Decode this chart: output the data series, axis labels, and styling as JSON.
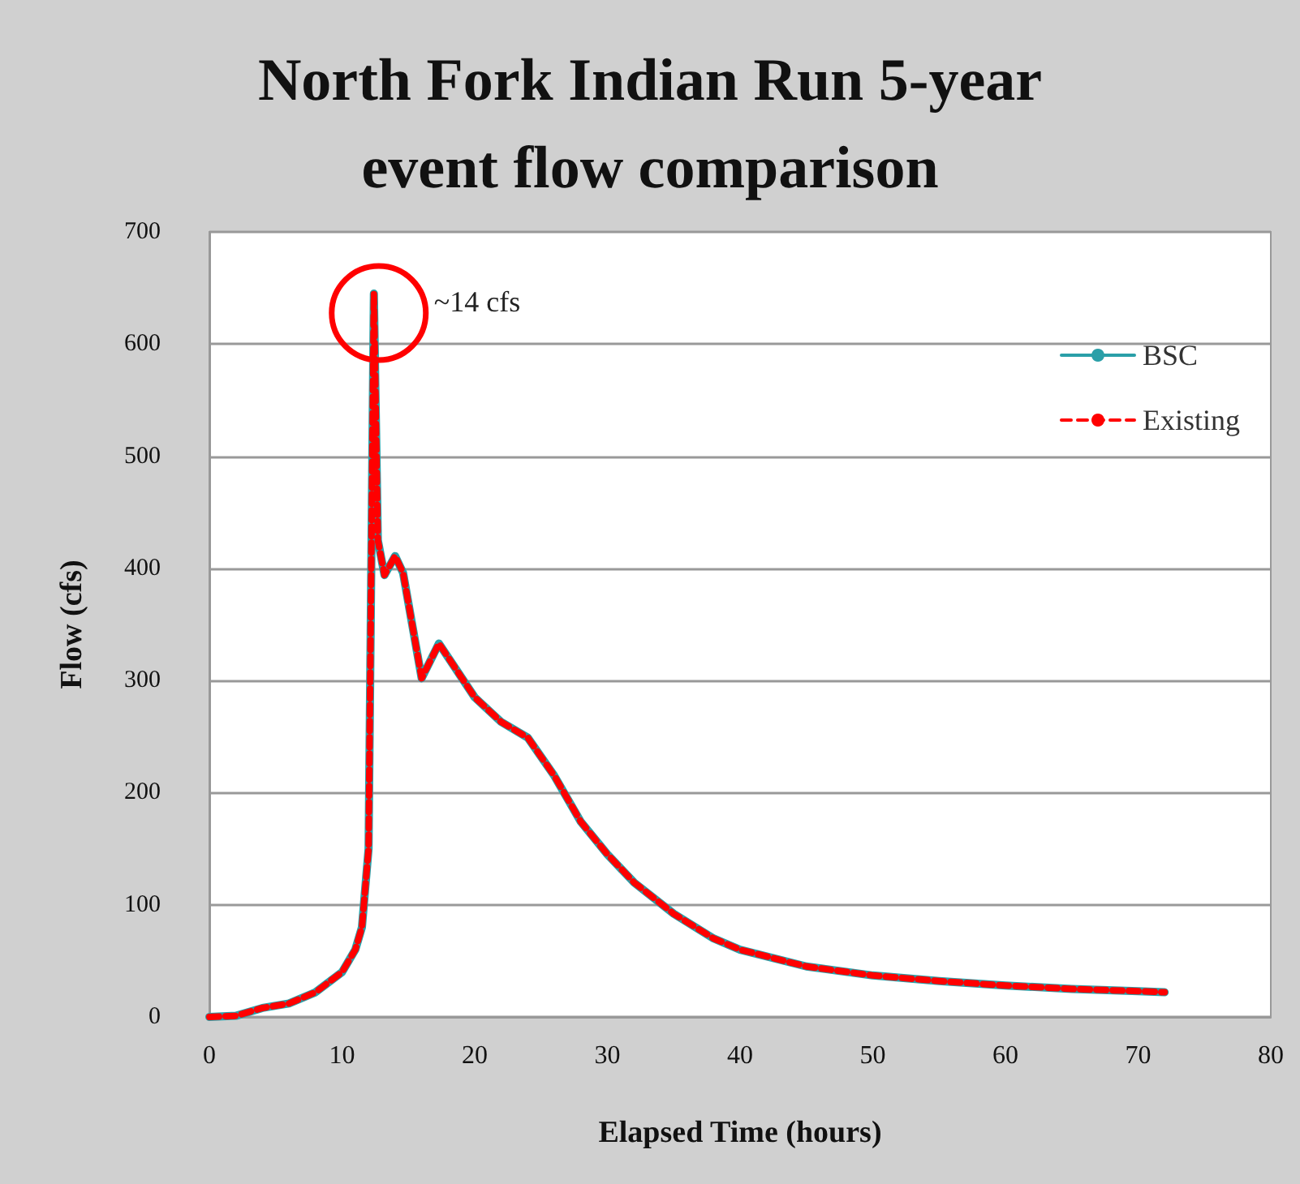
{
  "chart_data": {
    "type": "line",
    "title": "North Fork Indian Run 5-year\nevent flow comparison",
    "xlabel": "Elapsed Time (hours)",
    "ylabel": "Flow (cfs)",
    "x": [
      0,
      2,
      4,
      6,
      8,
      10,
      11,
      11.5,
      12,
      12.4,
      12.7,
      13.2,
      14,
      14.6,
      16,
      17.3,
      20,
      22,
      24,
      26,
      28,
      30,
      32,
      35,
      38,
      40,
      45,
      50,
      55,
      60,
      65,
      70,
      72
    ],
    "series": [
      {
        "name": "BSC",
        "color": "#2a9fa8",
        "line_style": "solid",
        "values": [
          0,
          1,
          8,
          12,
          22,
          40,
          60,
          80,
          150,
          645,
          425,
          394,
          411,
          396,
          302,
          333,
          285,
          263,
          249,
          215,
          174,
          145,
          120,
          92,
          70,
          60,
          45,
          37,
          32,
          28,
          25,
          23,
          22
        ]
      },
      {
        "name": "Existing",
        "color": "#ff0000",
        "line_style": "dashed",
        "values": [
          0,
          1,
          8,
          12,
          22,
          40,
          60,
          80,
          150,
          645,
          425,
          394,
          411,
          396,
          302,
          333,
          285,
          263,
          249,
          215,
          174,
          145,
          120,
          92,
          70,
          60,
          45,
          37,
          32,
          28,
          25,
          23,
          22
        ]
      }
    ],
    "xlim": [
      0,
      80
    ],
    "xticks": [
      0,
      10,
      20,
      30,
      40,
      50,
      60,
      70,
      80
    ],
    "ylim": [
      0,
      700
    ],
    "yticks": [
      0,
      100,
      200,
      300,
      400,
      500,
      600,
      700
    ],
    "annotations": [
      {
        "text": "~14 cfs",
        "x": 12.4,
        "y": 645
      }
    ],
    "grid": "y",
    "legend": "top right"
  }
}
